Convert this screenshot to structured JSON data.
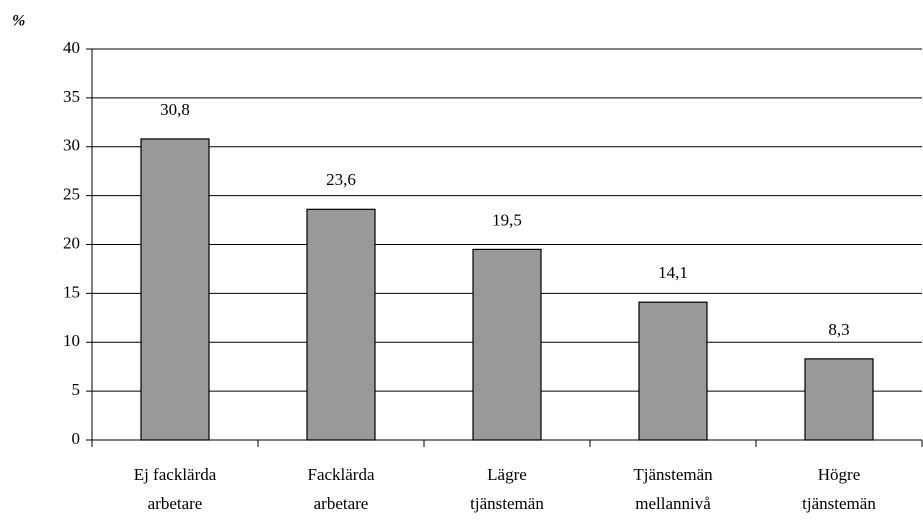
{
  "chart_data": {
    "type": "bar",
    "y_axis_label": "%",
    "categories": [
      [
        "Ej facklärda",
        "arbetare"
      ],
      [
        "Facklärda",
        "arbetare"
      ],
      [
        "Lägre",
        "tjänstemän"
      ],
      [
        "Tjänstemän",
        "mellannivå"
      ],
      [
        "Högre",
        "tjänstemän"
      ]
    ],
    "values": [
      30.8,
      23.6,
      19.5,
      14.1,
      8.3
    ],
    "value_labels": [
      "30,8",
      "23,6",
      "19,5",
      "14,1",
      "8,3"
    ],
    "color": "#999999",
    "ylim": [
      0,
      40
    ],
    "yticks": [
      0,
      5,
      10,
      15,
      20,
      25,
      30,
      35,
      40
    ],
    "grid": true
  }
}
